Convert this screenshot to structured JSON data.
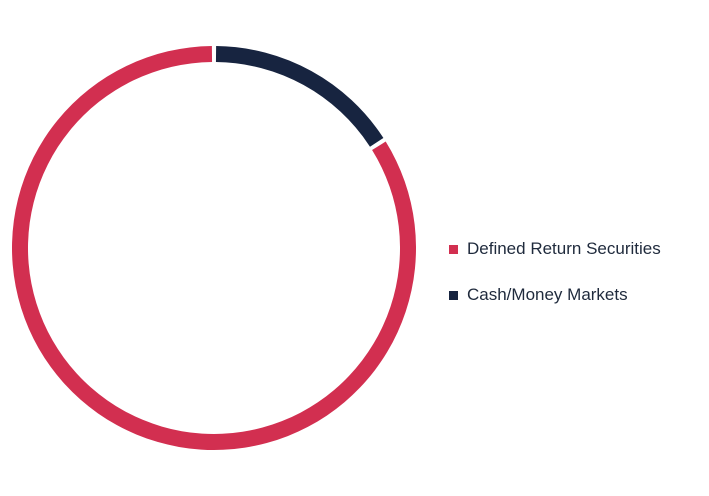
{
  "chart_data": {
    "type": "pie",
    "variant": "donut",
    "categories": [
      "Defined Return Securities",
      "Cash/Money Markets"
    ],
    "values": [
      84,
      16
    ],
    "colors": [
      "#d22f50",
      "#172440"
    ],
    "legend_position": "right",
    "title": ""
  },
  "legend": {
    "items": [
      {
        "label": "Defined Return Securities",
        "color": "#d22f50"
      },
      {
        "label": "Cash/Money Markets",
        "color": "#172440"
      }
    ]
  }
}
